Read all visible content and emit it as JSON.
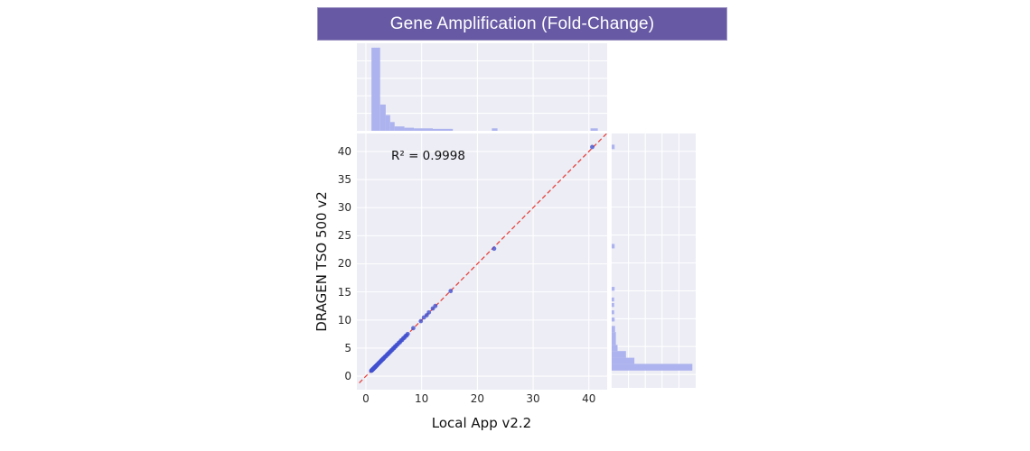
{
  "colors": {
    "banner_bg": "#6859A4",
    "banner_text": "#ffffff",
    "panel_bg": "#ecedf5",
    "grid": "#ffffff",
    "hist_bar": "#adb3ee",
    "point": "#4150d0",
    "identity_line": "#e64540",
    "tick_text": "#2b2b2b"
  },
  "chart_data": {
    "type": "scatter",
    "title": "Gene Amplification (Fold-Change)",
    "xlabel": "Local App v2.2",
    "ylabel": "DRAGEN TSO 500 v2",
    "annotation": "R² = 0.9998",
    "legend": "none",
    "grid": "on",
    "xlim": [
      -1.62,
      43.28
    ],
    "ylim": [
      -2.4,
      43.2
    ],
    "x_ticks": [
      0,
      10,
      20,
      30,
      40
    ],
    "y_ticks": [
      0,
      5,
      10,
      15,
      20,
      25,
      30,
      35,
      40
    ],
    "identity_line": {
      "style": "dashed",
      "color": "#e64540",
      "from": -1.2,
      "to": 43.2
    },
    "points": [
      [
        0.95,
        0.97
      ],
      [
        1.0,
        1.02
      ],
      [
        1.05,
        1.0
      ],
      [
        1.1,
        1.12
      ],
      [
        1.15,
        1.1
      ],
      [
        1.2,
        1.22
      ],
      [
        1.25,
        1.2
      ],
      [
        1.3,
        1.33
      ],
      [
        1.35,
        1.3
      ],
      [
        1.4,
        1.42
      ],
      [
        1.45,
        1.4
      ],
      [
        1.5,
        1.53
      ],
      [
        1.55,
        1.5
      ],
      [
        1.6,
        1.62
      ],
      [
        1.65,
        1.6
      ],
      [
        1.7,
        1.73
      ],
      [
        1.75,
        1.7
      ],
      [
        1.8,
        1.82
      ],
      [
        1.85,
        1.8
      ],
      [
        1.9,
        1.93
      ],
      [
        1.95,
        1.9
      ],
      [
        2.0,
        2.03
      ],
      [
        2.1,
        2.07
      ],
      [
        2.2,
        2.24
      ],
      [
        2.3,
        2.26
      ],
      [
        2.4,
        2.44
      ],
      [
        2.5,
        2.46
      ],
      [
        2.6,
        2.64
      ],
      [
        2.7,
        2.66
      ],
      [
        2.8,
        2.84
      ],
      [
        2.9,
        2.86
      ],
      [
        3.0,
        3.04
      ],
      [
        3.1,
        3.06
      ],
      [
        3.2,
        3.24
      ],
      [
        3.3,
        3.27
      ],
      [
        3.45,
        3.5
      ],
      [
        3.6,
        3.55
      ],
      [
        3.75,
        3.8
      ],
      [
        3.9,
        3.85
      ],
      [
        4.0,
        4.05
      ],
      [
        4.15,
        4.1
      ],
      [
        4.3,
        4.35
      ],
      [
        4.45,
        4.4
      ],
      [
        4.6,
        4.65
      ],
      [
        4.75,
        4.7
      ],
      [
        4.9,
        4.95
      ],
      [
        5.05,
        5.0
      ],
      [
        5.2,
        5.25
      ],
      [
        5.35,
        5.3
      ],
      [
        5.5,
        5.55
      ],
      [
        5.7,
        5.65
      ],
      [
        5.9,
        5.95
      ],
      [
        6.1,
        6.05
      ],
      [
        6.3,
        6.35
      ],
      [
        6.5,
        6.45
      ],
      [
        6.7,
        6.75
      ],
      [
        6.9,
        6.85
      ],
      [
        7.1,
        7.15
      ],
      [
        7.3,
        7.25
      ],
      [
        7.5,
        7.52
      ],
      [
        8.5,
        8.55
      ],
      [
        9.85,
        9.8
      ],
      [
        10.4,
        10.45
      ],
      [
        10.9,
        10.85
      ],
      [
        11.3,
        11.35
      ],
      [
        12.0,
        12.05
      ],
      [
        12.45,
        12.5
      ],
      [
        15.2,
        15.15
      ],
      [
        23.0,
        22.7
      ],
      [
        40.6,
        40.8
      ]
    ],
    "marginal_top_hist": {
      "note": "relative frequency of Local App v2.2 fold-change values",
      "bins": [
        {
          "x0": 1.0,
          "x1": 2.55,
          "rel": 0.95
        },
        {
          "x0": 2.55,
          "x1": 3.55,
          "rel": 0.3
        },
        {
          "x0": 3.55,
          "x1": 4.35,
          "rel": 0.18
        },
        {
          "x0": 4.35,
          "x1": 5.15,
          "rel": 0.1
        },
        {
          "x0": 5.15,
          "x1": 6.9,
          "rel": 0.05
        },
        {
          "x0": 6.9,
          "x1": 8.6,
          "rel": 0.035
        },
        {
          "x0": 8.6,
          "x1": 12.0,
          "rel": 0.028
        },
        {
          "x0": 12.0,
          "x1": 15.6,
          "rel": 0.022
        },
        {
          "x0": 22.6,
          "x1": 23.6,
          "rel": 0.028
        },
        {
          "x0": 40.3,
          "x1": 41.6,
          "rel": 0.028
        }
      ]
    },
    "marginal_right_hist": {
      "note": "relative frequency of DRAGEN TSO 500 v2 fold-change values",
      "bins": [
        {
          "y0": 0.7,
          "y1": 1.9,
          "rel": 0.96
        },
        {
          "y0": 1.9,
          "y1": 3.0,
          "rel": 0.27
        },
        {
          "y0": 3.0,
          "y1": 4.2,
          "rel": 0.17
        },
        {
          "y0": 4.2,
          "y1": 5.3,
          "rel": 0.07
        },
        {
          "y0": 5.3,
          "y1": 7.6,
          "rel": 0.05
        },
        {
          "y0": 7.6,
          "y1": 8.7,
          "rel": 0.04
        },
        {
          "y0": 9.5,
          "y1": 10.2,
          "rel": 0.035
        },
        {
          "y0": 10.8,
          "y1": 11.5,
          "rel": 0.03
        },
        {
          "y0": 12.1,
          "y1": 12.8,
          "rel": 0.03
        },
        {
          "y0": 13.1,
          "y1": 13.8,
          "rel": 0.03
        },
        {
          "y0": 15.0,
          "y1": 15.7,
          "rel": 0.035
        },
        {
          "y0": 22.6,
          "y1": 23.4,
          "rel": 0.035
        },
        {
          "y0": 40.4,
          "y1": 41.2,
          "rel": 0.035
        }
      ]
    }
  }
}
